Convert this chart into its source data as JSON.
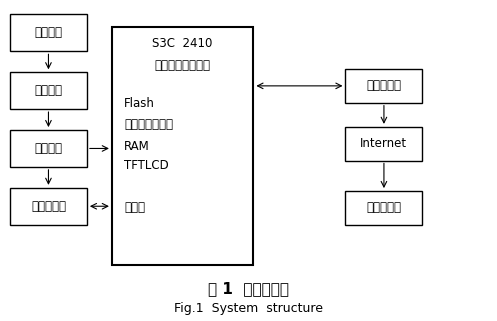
{
  "title_cn": "图 1  系统结构图",
  "title_en": "Fig.1  System  structure",
  "bg_color": "#ffffff",
  "left_boxes": [
    {
      "key": "xinghao",
      "label": "信号调理"
    },
    {
      "key": "shuju_caiji",
      "label": "数据采集"
    },
    {
      "key": "shuju_huancun",
      "label": "数据缓存"
    },
    {
      "key": "yeye",
      "label": "液晶触摸屏"
    }
  ],
  "right_boxes": [
    {
      "key": "yitaiwang",
      "label": "以太网接口"
    },
    {
      "key": "internet",
      "label": "Internet"
    },
    {
      "key": "yuancheng",
      "label": "远程服务器"
    }
  ],
  "s3c_lines": [
    {
      "text": "S3C  2410",
      "align": "center",
      "bold": false,
      "latin": true
    },
    {
      "text": "（嵌入式处理器）",
      "align": "center",
      "bold": false,
      "latin": false
    },
    {
      "text": "",
      "align": "left",
      "bold": false,
      "latin": true
    },
    {
      "text": "Flash",
      "align": "left",
      "bold": false,
      "latin": true
    },
    {
      "text": "（程序存储器）",
      "align": "left",
      "bold": false,
      "latin": false
    },
    {
      "text": "RAM",
      "align": "left",
      "bold": false,
      "latin": true
    },
    {
      "text": "TFTLCD",
      "align": "left",
      "bold": false,
      "latin": true
    },
    {
      "text": "",
      "align": "left",
      "bold": false,
      "latin": true
    },
    {
      "text": "控制器",
      "align": "left",
      "bold": false,
      "latin": false
    }
  ]
}
